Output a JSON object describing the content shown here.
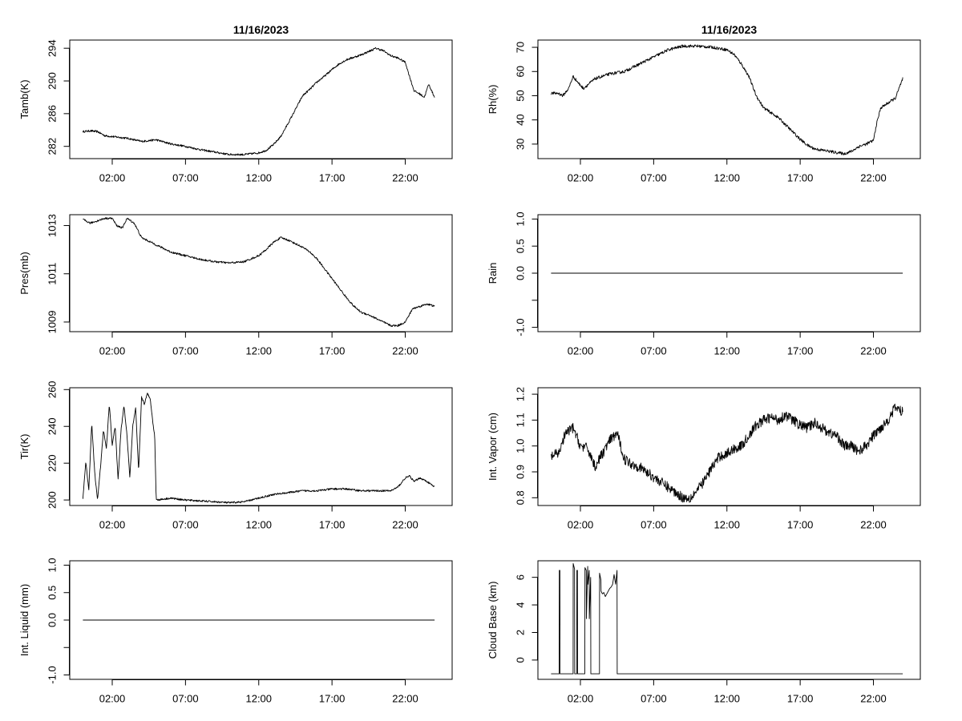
{
  "chart_data": [
    {
      "id": "tamb",
      "type": "line",
      "title": "11/16/2023",
      "xlabel": "",
      "ylabel": "Tamb(K)",
      "xlim": [
        -0.9,
        25.2
      ],
      "ylim": [
        280.5,
        295
      ],
      "yticks": [
        282,
        286,
        290,
        294
      ],
      "ytick_labels": [
        "282",
        "286",
        "290",
        "294"
      ],
      "xticks": [
        2,
        7,
        12,
        17,
        22
      ],
      "xtick_labels": [
        "02:00",
        "07:00",
        "12:00",
        "17:00",
        "22:00"
      ],
      "noise": 0.12,
      "x": [
        0,
        0.5,
        1,
        1.5,
        2,
        3,
        4,
        5,
        6,
        7,
        8,
        9,
        10,
        11,
        11.5,
        12,
        12.5,
        13,
        13.5,
        14,
        14.5,
        15,
        15.5,
        16,
        16.5,
        17,
        17.5,
        18,
        18.5,
        19,
        19.5,
        20,
        20.5,
        21,
        21.5,
        22,
        22.3,
        22.6,
        23,
        23.3,
        23.6,
        24
      ],
      "y": [
        283.8,
        283.9,
        283.8,
        283.3,
        283.2,
        283.0,
        282.6,
        282.8,
        282.3,
        282.0,
        281.6,
        281.3,
        281.0,
        281.0,
        281.1,
        281.2,
        281.5,
        282.2,
        283.2,
        284.8,
        286.5,
        288.2,
        289.0,
        289.9,
        290.6,
        291.4,
        292.1,
        292.6,
        292.9,
        293.2,
        293.6,
        294.0,
        293.7,
        293.1,
        292.8,
        292.3,
        290.5,
        288.8,
        288.4,
        288.0,
        289.6,
        288.0
      ]
    },
    {
      "id": "rh",
      "type": "line",
      "title": "11/16/2023",
      "xlabel": "",
      "ylabel": "Rh(%)",
      "xlim": [
        -0.9,
        25.2
      ],
      "ylim": [
        24,
        73
      ],
      "yticks": [
        30,
        40,
        50,
        60,
        70
      ],
      "ytick_labels": [
        "30",
        "40",
        "50",
        "60",
        "70"
      ],
      "xticks": [
        2,
        7,
        12,
        17,
        22
      ],
      "xtick_labels": [
        "02:00",
        "07:00",
        "12:00",
        "17:00",
        "22:00"
      ],
      "noise": 0.6,
      "x": [
        0,
        0.5,
        0.8,
        1.2,
        1.5,
        1.9,
        2.2,
        3,
        4,
        5,
        6,
        7,
        8,
        9,
        10,
        11,
        12,
        12.5,
        13,
        13.5,
        14,
        14.5,
        15,
        15.5,
        16,
        16.5,
        17,
        17.5,
        18,
        18.5,
        19,
        19.5,
        20,
        20.5,
        21,
        21.5,
        22,
        22.2,
        22.5,
        23,
        23.5,
        24
      ],
      "y": [
        51,
        51,
        50,
        53,
        58,
        55,
        53,
        57,
        59,
        60,
        63,
        66,
        69,
        70.5,
        70.5,
        70,
        69,
        67,
        63,
        58,
        50,
        45,
        43,
        41,
        38,
        35,
        32,
        29.5,
        28,
        27.5,
        27,
        26.5,
        26,
        27,
        29,
        30,
        31.5,
        38,
        45,
        47,
        49,
        57
      ]
    },
    {
      "id": "pres",
      "type": "line",
      "title": "",
      "xlabel": "",
      "ylabel": "Pres(mb)",
      "xlim": [
        -0.9,
        25.2
      ],
      "ylim": [
        1008.6,
        1013.45
      ],
      "yticks": [
        1009,
        1011,
        1013
      ],
      "ytick_labels": [
        "1009",
        "1011",
        "1013"
      ],
      "xticks": [
        2,
        7,
        12,
        17,
        22
      ],
      "xtick_labels": [
        "02:00",
        "07:00",
        "12:00",
        "17:00",
        "22:00"
      ],
      "noise": 0.04,
      "x": [
        0,
        0.5,
        1,
        1.5,
        2,
        2.3,
        2.7,
        3,
        3.5,
        4,
        5,
        6,
        7,
        8,
        9,
        10,
        11,
        12,
        12.5,
        13,
        13.5,
        14,
        15,
        15.5,
        16,
        16.5,
        17,
        17.5,
        18,
        18.5,
        19,
        19.5,
        20,
        20.5,
        21,
        21.5,
        22,
        22.5,
        23,
        23.5,
        24
      ],
      "y": [
        1013.25,
        1013.1,
        1013.2,
        1013.3,
        1013.3,
        1013.0,
        1012.9,
        1013.3,
        1013.1,
        1012.5,
        1012.2,
        1011.9,
        1011.75,
        1011.6,
        1011.5,
        1011.45,
        1011.5,
        1011.75,
        1012.0,
        1012.3,
        1012.5,
        1012.4,
        1012.1,
        1011.9,
        1011.6,
        1011.2,
        1010.8,
        1010.4,
        1010.0,
        1009.65,
        1009.4,
        1009.3,
        1009.15,
        1009.0,
        1008.85,
        1008.85,
        1009.0,
        1009.55,
        1009.65,
        1009.75,
        1009.65
      ]
    },
    {
      "id": "rain",
      "type": "line",
      "title": "",
      "xlabel": "",
      "ylabel": "Rain",
      "xlim": [
        -0.9,
        25.2
      ],
      "ylim": [
        -1.08,
        1.08
      ],
      "yticks": [
        -1.0,
        -0.5,
        0.0,
        0.5,
        1.0
      ],
      "ytick_labels": [
        "-1.0",
        "",
        "0.0",
        "0.5",
        "1.0"
      ],
      "xticks": [
        2,
        7,
        12,
        17,
        22
      ],
      "xtick_labels": [
        "02:00",
        "07:00",
        "12:00",
        "17:00",
        "22:00"
      ],
      "noise": 0,
      "x": [
        0,
        24
      ],
      "y": [
        0,
        0
      ]
    },
    {
      "id": "tir",
      "type": "line",
      "title": "",
      "xlabel": "",
      "ylabel": "Tir(K)",
      "xlim": [
        -0.9,
        25.2
      ],
      "ylim": [
        197,
        261
      ],
      "yticks": [
        200,
        220,
        240,
        260
      ],
      "ytick_labels": [
        "200",
        "220",
        "240",
        "260"
      ],
      "xticks": [
        2,
        7,
        12,
        17,
        22
      ],
      "xtick_labels": [
        "02:00",
        "07:00",
        "12:00",
        "17:00",
        "22:00"
      ],
      "noise": 0.5,
      "x": [
        0,
        0.2,
        0.4,
        0.6,
        0.8,
        1.0,
        1.2,
        1.4,
        1.6,
        1.8,
        2.0,
        2.2,
        2.4,
        2.6,
        2.8,
        3.0,
        3.2,
        3.4,
        3.6,
        3.8,
        4.0,
        4.2,
        4.4,
        4.6,
        4.8,
        4.9,
        5.0,
        6,
        7,
        8,
        9,
        10,
        11,
        12,
        13,
        14,
        15,
        16,
        17,
        18,
        19,
        20,
        21,
        21.5,
        22,
        22.3,
        22.6,
        23,
        23.5,
        24
      ],
      "y": [
        201,
        221,
        205,
        242,
        215,
        200,
        218,
        238,
        228,
        252,
        230,
        240,
        211,
        238,
        251,
        236,
        212,
        240,
        250,
        215,
        256,
        252,
        258,
        255,
        240,
        235,
        200,
        201,
        200,
        199.5,
        199,
        198.5,
        199,
        201,
        203,
        204,
        205,
        205,
        206,
        206,
        205,
        205,
        205,
        207,
        212,
        213,
        210,
        212,
        210,
        207
      ]
    },
    {
      "id": "vapor",
      "type": "line",
      "title": "",
      "xlabel": "",
      "ylabel": "Int. Vapor (cm)",
      "xlim": [
        -0.9,
        25.2
      ],
      "ylim": [
        0.77,
        1.225
      ],
      "yticks": [
        0.8,
        0.9,
        1.0,
        1.1,
        1.2
      ],
      "ytick_labels": [
        "0.8",
        "0.9",
        "1.0",
        "1.1",
        "1.2"
      ],
      "xticks": [
        2,
        7,
        12,
        17,
        22
      ],
      "xtick_labels": [
        "02:00",
        "07:00",
        "12:00",
        "17:00",
        "22:00"
      ],
      "noise": 0.02,
      "x": [
        0,
        0.5,
        1,
        1.5,
        2,
        2.5,
        3,
        3.5,
        4,
        4.5,
        5,
        5.5,
        6,
        6.5,
        7,
        7.5,
        8,
        8.5,
        9,
        9.5,
        10,
        10.5,
        11,
        11.5,
        12,
        12.5,
        13,
        13.5,
        14,
        14.5,
        15,
        15.5,
        16,
        16.5,
        17,
        17.5,
        18,
        18.5,
        19,
        19.5,
        20,
        20.5,
        21,
        21.5,
        22,
        22.5,
        23,
        23.5,
        24
      ],
      "y": [
        0.96,
        0.97,
        1.05,
        1.07,
        1.0,
        0.99,
        0.92,
        0.97,
        1.02,
        1.05,
        0.95,
        0.93,
        0.92,
        0.9,
        0.88,
        0.86,
        0.84,
        0.82,
        0.8,
        0.8,
        0.83,
        0.87,
        0.92,
        0.96,
        0.97,
        0.99,
        1.0,
        1.04,
        1.08,
        1.1,
        1.11,
        1.1,
        1.12,
        1.1,
        1.08,
        1.07,
        1.09,
        1.07,
        1.05,
        1.04,
        1.0,
        1.0,
        0.98,
        1.0,
        1.04,
        1.07,
        1.1,
        1.15,
        1.13
      ]
    },
    {
      "id": "liquid",
      "type": "line",
      "title": "",
      "xlabel": "",
      "ylabel": "Int. Liquid (mm)",
      "xlim": [
        -0.9,
        25.2
      ],
      "ylim": [
        -1.08,
        1.08
      ],
      "yticks": [
        -1.0,
        -0.5,
        0.0,
        0.5,
        1.0
      ],
      "ytick_labels": [
        "-1.0",
        "",
        "0.0",
        "0.5",
        "1.0"
      ],
      "xticks": [
        2,
        7,
        12,
        17,
        22
      ],
      "xtick_labels": [
        "02:00",
        "07:00",
        "12:00",
        "17:00",
        "22:00"
      ],
      "noise": 0,
      "x": [
        0,
        24
      ],
      "y": [
        0,
        0
      ]
    },
    {
      "id": "cloud",
      "type": "line",
      "title": "",
      "xlabel": "",
      "ylabel": "Cloud Base (km)",
      "xlim": [
        -0.9,
        25.2
      ],
      "ylim": [
        -1.4,
        7.2
      ],
      "yticks": [
        0,
        2,
        4,
        6
      ],
      "ytick_labels": [
        "0",
        "2",
        "4",
        "6"
      ],
      "xticks": [
        2,
        7,
        12,
        17,
        22
      ],
      "xtick_labels": [
        "02:00",
        "07:00",
        "12:00",
        "17:00",
        "22:00"
      ],
      "noise": 0,
      "x": [
        0,
        0.55,
        0.56,
        0.6,
        0.61,
        1.5,
        1.51,
        1.6,
        1.61,
        1.75,
        1.76,
        1.8,
        1.81,
        2.3,
        2.31,
        2.4,
        2.41,
        2.5,
        2.51,
        2.6,
        2.61,
        2.7,
        2.71,
        2.8,
        2.81,
        3.3,
        3.31,
        3.4,
        3.41,
        3.5,
        3.6,
        3.7,
        3.8,
        3.9,
        4.0,
        4.1,
        4.2,
        4.3,
        4.4,
        4.5,
        4.51,
        4.6,
        4.61,
        24
      ],
      "y": [
        -1,
        -1,
        6.5,
        6.5,
        -1,
        -1,
        7.0,
        6.6,
        -1,
        -1,
        6.5,
        6.5,
        -1,
        -1,
        6.7,
        6.5,
        3.0,
        6.8,
        5.5,
        6.5,
        3.0,
        6.0,
        -1,
        -1,
        -1,
        -1,
        6.3,
        5.8,
        5.0,
        4.8,
        4.9,
        4.6,
        4.8,
        5.0,
        5.2,
        5.3,
        5.5,
        6.2,
        5.5,
        6.5,
        -1,
        -1,
        -1,
        -1
      ]
    }
  ]
}
